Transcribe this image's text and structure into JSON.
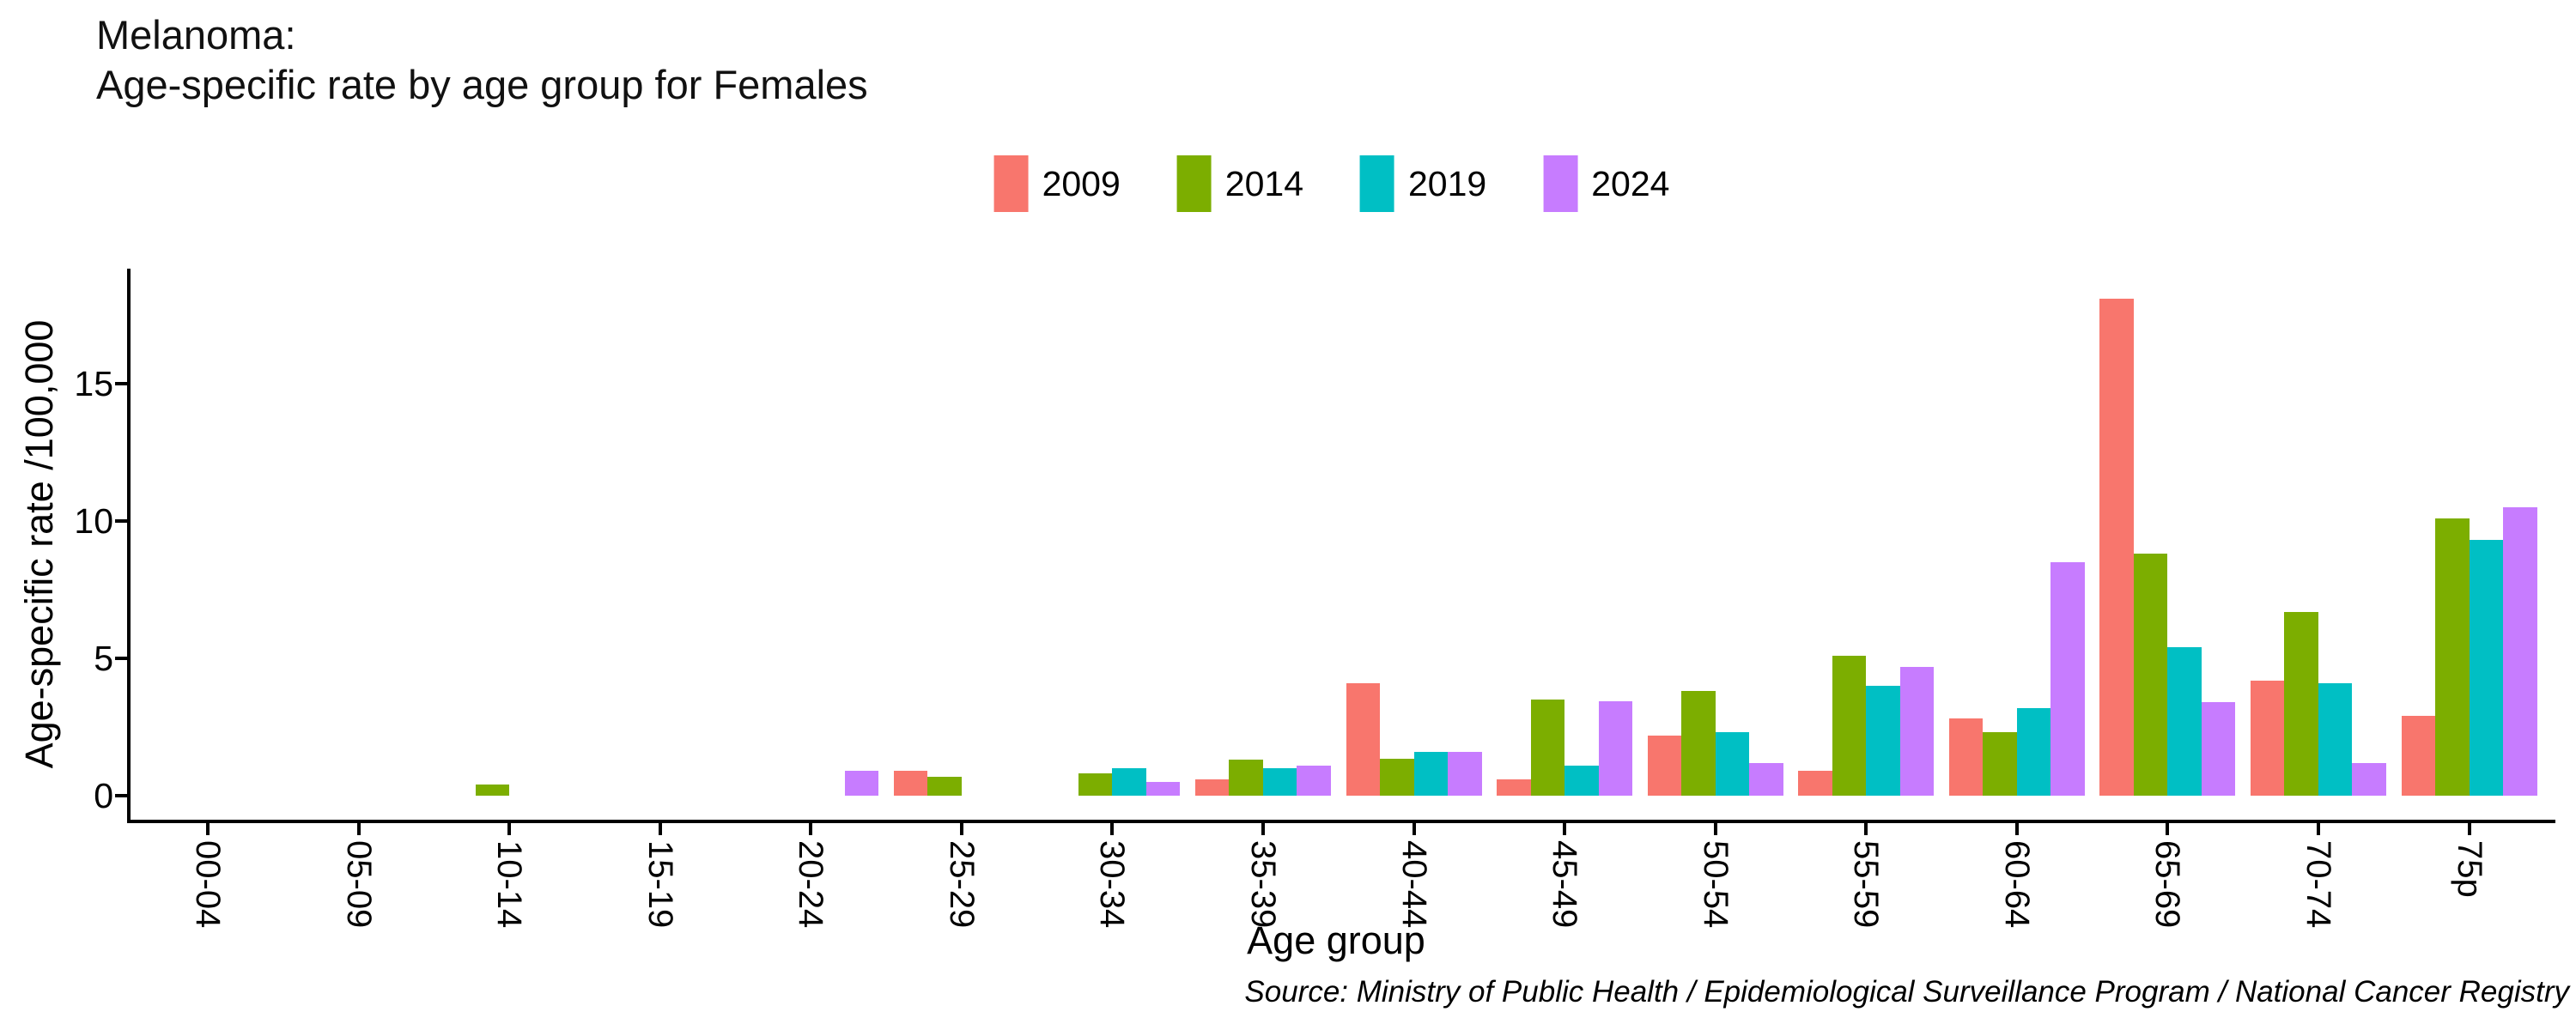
{
  "header": {
    "title_line1": "Melanoma:",
    "title_line2": "Age-specific rate by age group for Females"
  },
  "chart_data": {
    "type": "bar",
    "title": "Melanoma: Age-specific rate by age group for Females",
    "xlabel": "Age group",
    "ylabel": "Age-specific rate /100,000",
    "ylim": [
      0,
      19.2
    ],
    "yticks": [
      0,
      5,
      10,
      15
    ],
    "grid": false,
    "legend_position": "top-center",
    "categories": [
      "00-04",
      "05-09",
      "10-14",
      "15-19",
      "20-24",
      "25-29",
      "30-34",
      "35-39",
      "40-44",
      "45-49",
      "50-54",
      "55-59",
      "60-64",
      "65-69",
      "70-74",
      "75p"
    ],
    "series": [
      {
        "name": "2009",
        "color": "#F8766D",
        "values": [
          0,
          0,
          0,
          0,
          0,
          0.9,
          0,
          0.6,
          4.1,
          0.6,
          2.2,
          0.9,
          2.8,
          18.1,
          4.2,
          2.9
        ]
      },
      {
        "name": "2014",
        "color": "#7CAE00",
        "values": [
          0,
          0,
          0.4,
          0,
          0,
          0.7,
          0.8,
          1.3,
          1.35,
          3.5,
          3.8,
          5.1,
          2.3,
          8.8,
          6.7,
          10.1
        ]
      },
      {
        "name": "2019",
        "color": "#00BFC4",
        "values": [
          0,
          0,
          0,
          0,
          0,
          0,
          1.0,
          1.0,
          1.6,
          1.1,
          2.3,
          4.0,
          3.2,
          5.4,
          4.1,
          9.3
        ]
      },
      {
        "name": "2024",
        "color": "#C77CFF",
        "values": [
          0,
          0,
          0,
          0,
          0.9,
          0,
          0.5,
          1.1,
          1.6,
          3.45,
          1.2,
          4.7,
          8.5,
          3.4,
          1.2,
          10.5
        ]
      }
    ]
  },
  "source": {
    "text": "Source: Ministry of Public Health / Epidemiological Surveillance Program / National Cancer Registry"
  }
}
